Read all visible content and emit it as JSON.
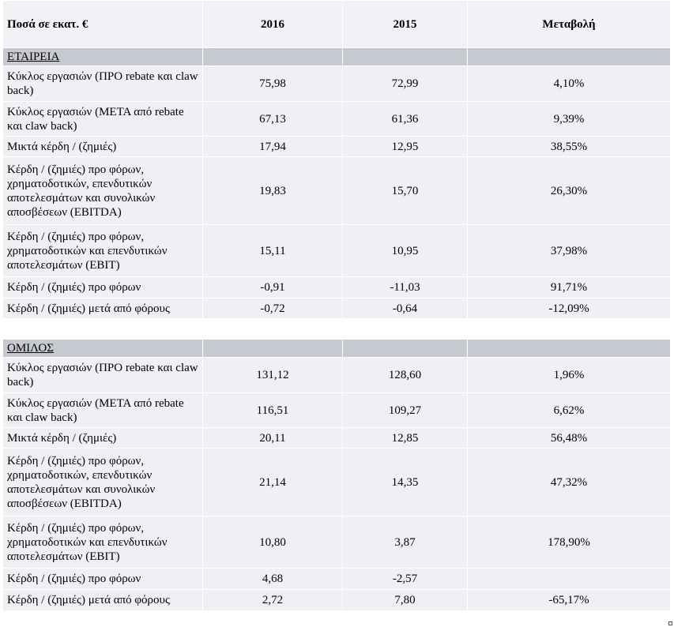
{
  "header": {
    "col0": "Ποσά σε εκατ. €",
    "col1": "2016",
    "col2": "2015",
    "col3": "Μεταβολή"
  },
  "sections": [
    {
      "title": "ΕΤΑΙΡΕΙΑ",
      "rows": [
        {
          "label": "Κύκλος εργασιών (ΠΡΟ rebate και claw back)",
          "y2016": "75,98",
          "y2015": "72,99",
          "change": "4,10%"
        },
        {
          "label": "Κύκλος εργασιών (ΜΕΤΑ από rebate και claw back)",
          "y2016": "67,13",
          "y2015": "61,36",
          "change": "9,39%"
        },
        {
          "label": "Μικτά κέρδη / (ζημιές)",
          "y2016": "17,94",
          "y2015": "12,95",
          "change": "38,55%"
        },
        {
          "label": "Κέρδη / (ζημιές) προ φόρων, χρηματοδοτικών, επενδυτικών αποτελεσμάτων και συνολικών αποσβέσεων (EBITDA)",
          "y2016": "19,83",
          "y2015": "15,70",
          "change": "26,30%"
        },
        {
          "label": "Κέρδη / (ζημιές) προ φόρων, χρηματοδοτικών και επενδυτικών αποτελεσμάτων (EBIT)",
          "y2016": "15,11",
          "y2015": "10,95",
          "change": "37,98%"
        },
        {
          "label": "Κέρδη / (ζημιές) προ φόρων",
          "y2016": "-0,91",
          "y2015": "-11,03",
          "change": "91,71%"
        },
        {
          "label": "Κέρδη / (ζημιές) μετά από φόρους",
          "y2016": "-0,72",
          "y2015": "-0,64",
          "change": "-12,09%"
        }
      ]
    },
    {
      "title": "ΟΜΙΛΟΣ",
      "rows": [
        {
          "label": "Κύκλος εργασιών (ΠΡΟ rebate και claw back)",
          "y2016": "131,12",
          "y2015": "128,60",
          "change": "1,96%"
        },
        {
          "label": "Κύκλος εργασιών (ΜΕΤΑ από rebate και claw back)",
          "y2016": "116,51",
          "y2015": "109,27",
          "change": "6,62%"
        },
        {
          "label": "Μικτά κέρδη / (ζημιές)",
          "y2016": "20,11",
          "y2015": "12,85",
          "change": "56,48%"
        },
        {
          "label": "Κέρδη / (ζημιές) προ φόρων, χρηματοδοτικών, επενδυτικών αποτελεσμάτων και συνολικών αποσβέσεων (EBITDA)",
          "y2016": "21,14",
          "y2015": "14,35",
          "change": "47,32%"
        },
        {
          "label": "Κέρδη / (ζημιές) προ φόρων, χρηματοδοτικών και επενδυτικών αποτελεσμάτων (EBIT)",
          "y2016": "10,80",
          "y2015": "3,87",
          "change": "178,90%"
        },
        {
          "label": "Κέρδη / (ζημιές) προ φόρων",
          "y2016": "4,68",
          "y2015": "-2,57",
          "change": ""
        },
        {
          "label": "Κέρδη / (ζημιές) μετά από φόρους",
          "y2016": "2,72",
          "y2015": "7,80",
          "change": "-65,17%"
        }
      ]
    }
  ]
}
